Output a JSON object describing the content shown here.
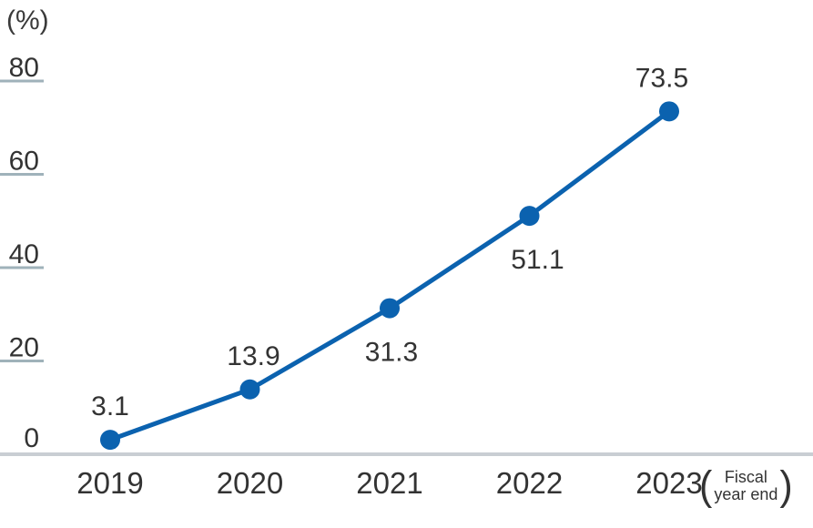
{
  "chart_data": {
    "type": "line",
    "title": "",
    "unit_label": "(%)",
    "x_note_open": "(",
    "x_note_line1": "Fiscal",
    "x_note_line2": "year end",
    "x_note_close": ")",
    "categories": [
      "2019",
      "2020",
      "2021",
      "2022",
      "2023"
    ],
    "values": [
      3.1,
      13.9,
      31.3,
      51.1,
      73.5
    ],
    "data_labels": [
      "3.1",
      "13.9",
      "31.3",
      "51.1",
      "73.5"
    ],
    "label_positions": [
      "above",
      "above",
      "below",
      "below",
      "above"
    ],
    "label_dx": [
      0,
      4,
      2,
      9,
      -8
    ],
    "y_ticks": [
      0,
      20,
      40,
      60,
      80
    ],
    "ylim": [
      0,
      80
    ],
    "legend": "none",
    "grid": "left-tick-marks-only",
    "colors": {
      "line": "#0b62af",
      "point": "#0b62af",
      "text": "#333333",
      "tick": "#9fb2ba",
      "axis": "#c9ced3"
    }
  }
}
